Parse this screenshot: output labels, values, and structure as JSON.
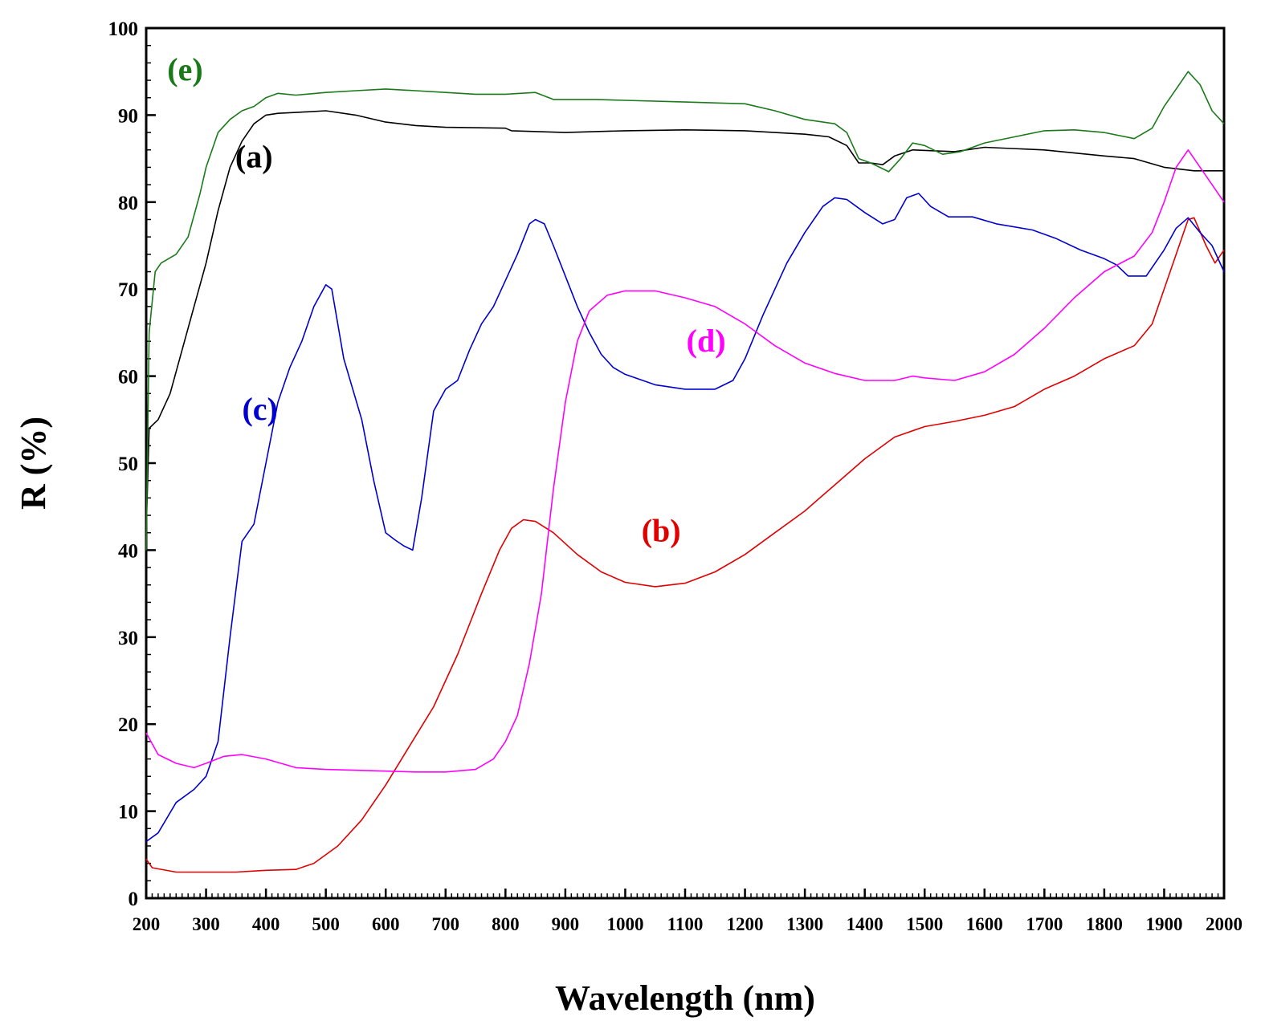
{
  "chart_data": {
    "type": "line",
    "xlabel": "Wavelength (nm)",
    "ylabel": "R (%)",
    "xlim": [
      200,
      2000
    ],
    "ylim": [
      0,
      100
    ],
    "x_ticks": [
      200,
      300,
      400,
      500,
      600,
      700,
      800,
      900,
      1000,
      1100,
      1200,
      1300,
      1400,
      1500,
      1600,
      1700,
      1800,
      1900,
      2000
    ],
    "y_ticks": [
      0,
      10,
      20,
      30,
      40,
      50,
      60,
      70,
      80,
      90,
      100
    ],
    "grid": false,
    "series": [
      {
        "name": "(a)",
        "color": "#000000",
        "label_at": [
          380,
          84
        ],
        "points": [
          [
            200,
            42
          ],
          [
            205,
            54
          ],
          [
            220,
            55
          ],
          [
            240,
            58
          ],
          [
            260,
            63
          ],
          [
            280,
            68
          ],
          [
            300,
            73
          ],
          [
            320,
            79
          ],
          [
            340,
            84
          ],
          [
            360,
            87
          ],
          [
            380,
            89
          ],
          [
            400,
            90
          ],
          [
            420,
            90.2
          ],
          [
            450,
            90.3
          ],
          [
            500,
            90.5
          ],
          [
            550,
            90
          ],
          [
            600,
            89.2
          ],
          [
            650,
            88.8
          ],
          [
            700,
            88.6
          ],
          [
            800,
            88.5
          ],
          [
            810,
            88.2
          ],
          [
            900,
            88
          ],
          [
            1000,
            88.2
          ],
          [
            1100,
            88.3
          ],
          [
            1200,
            88.2
          ],
          [
            1300,
            87.8
          ],
          [
            1340,
            87.5
          ],
          [
            1370,
            86.5
          ],
          [
            1390,
            84.5
          ],
          [
            1410,
            84.5
          ],
          [
            1430,
            84.3
          ],
          [
            1450,
            85.3
          ],
          [
            1480,
            86
          ],
          [
            1550,
            85.8
          ],
          [
            1600,
            86.3
          ],
          [
            1700,
            86
          ],
          [
            1800,
            85.3
          ],
          [
            1850,
            85
          ],
          [
            1900,
            84
          ],
          [
            1950,
            83.6
          ],
          [
            2000,
            83.6
          ]
        ]
      },
      {
        "name": "(b)",
        "color": "#e00000",
        "label_at": [
          1060,
          41
        ],
        "points": [
          [
            200,
            4.5
          ],
          [
            210,
            3.5
          ],
          [
            250,
            3
          ],
          [
            300,
            3
          ],
          [
            350,
            3
          ],
          [
            400,
            3.2
          ],
          [
            450,
            3.3
          ],
          [
            480,
            4
          ],
          [
            520,
            6
          ],
          [
            560,
            9
          ],
          [
            600,
            13
          ],
          [
            640,
            17.5
          ],
          [
            680,
            22
          ],
          [
            720,
            28
          ],
          [
            760,
            35
          ],
          [
            790,
            40
          ],
          [
            810,
            42.5
          ],
          [
            830,
            43.5
          ],
          [
            850,
            43.3
          ],
          [
            880,
            42
          ],
          [
            920,
            39.5
          ],
          [
            960,
            37.5
          ],
          [
            1000,
            36.3
          ],
          [
            1050,
            35.8
          ],
          [
            1100,
            36.2
          ],
          [
            1150,
            37.5
          ],
          [
            1200,
            39.5
          ],
          [
            1250,
            42
          ],
          [
            1300,
            44.5
          ],
          [
            1350,
            47.5
          ],
          [
            1400,
            50.5
          ],
          [
            1450,
            53
          ],
          [
            1500,
            54.2
          ],
          [
            1550,
            54.8
          ],
          [
            1600,
            55.5
          ],
          [
            1650,
            56.5
          ],
          [
            1700,
            58.5
          ],
          [
            1750,
            60
          ],
          [
            1800,
            62
          ],
          [
            1850,
            63.5
          ],
          [
            1880,
            66
          ],
          [
            1900,
            70
          ],
          [
            1920,
            74
          ],
          [
            1940,
            78
          ],
          [
            1950,
            78.2
          ],
          [
            1970,
            75
          ],
          [
            1985,
            73
          ],
          [
            2000,
            74.5
          ]
        ]
      },
      {
        "name": "(c)",
        "color": "#0000d0",
        "label_at": [
          390,
          55
        ],
        "points": [
          [
            200,
            6.5
          ],
          [
            220,
            7.5
          ],
          [
            250,
            11
          ],
          [
            280,
            12.5
          ],
          [
            300,
            14
          ],
          [
            320,
            18
          ],
          [
            340,
            30
          ],
          [
            360,
            41
          ],
          [
            380,
            43
          ],
          [
            400,
            50
          ],
          [
            420,
            57
          ],
          [
            440,
            61
          ],
          [
            460,
            64
          ],
          [
            480,
            68
          ],
          [
            500,
            70.5
          ],
          [
            510,
            70
          ],
          [
            530,
            62
          ],
          [
            560,
            55
          ],
          [
            580,
            48
          ],
          [
            600,
            42
          ],
          [
            615,
            41.2
          ],
          [
            630,
            40.5
          ],
          [
            645,
            40
          ],
          [
            660,
            46
          ],
          [
            680,
            56
          ],
          [
            700,
            58.5
          ],
          [
            720,
            59.5
          ],
          [
            740,
            63
          ],
          [
            760,
            66
          ],
          [
            780,
            68
          ],
          [
            800,
            71
          ],
          [
            820,
            74
          ],
          [
            840,
            77.5
          ],
          [
            850,
            78
          ],
          [
            865,
            77.5
          ],
          [
            880,
            75
          ],
          [
            900,
            71.5
          ],
          [
            920,
            68
          ],
          [
            940,
            65
          ],
          [
            960,
            62.5
          ],
          [
            980,
            61
          ],
          [
            1000,
            60.2
          ],
          [
            1050,
            59
          ],
          [
            1100,
            58.5
          ],
          [
            1150,
            58.5
          ],
          [
            1180,
            59.5
          ],
          [
            1200,
            62
          ],
          [
            1230,
            67
          ],
          [
            1270,
            73
          ],
          [
            1300,
            76.5
          ],
          [
            1330,
            79.5
          ],
          [
            1350,
            80.5
          ],
          [
            1370,
            80.3
          ],
          [
            1400,
            78.8
          ],
          [
            1430,
            77.5
          ],
          [
            1450,
            78
          ],
          [
            1470,
            80.5
          ],
          [
            1490,
            81
          ],
          [
            1510,
            79.5
          ],
          [
            1540,
            78.3
          ],
          [
            1580,
            78.3
          ],
          [
            1620,
            77.5
          ],
          [
            1680,
            76.8
          ],
          [
            1720,
            75.8
          ],
          [
            1760,
            74.5
          ],
          [
            1800,
            73.5
          ],
          [
            1820,
            72.8
          ],
          [
            1840,
            71.5
          ],
          [
            1870,
            71.5
          ],
          [
            1900,
            74.5
          ],
          [
            1920,
            77
          ],
          [
            1940,
            78.2
          ],
          [
            1960,
            76.5
          ],
          [
            1980,
            75
          ],
          [
            2000,
            72
          ]
        ]
      },
      {
        "name": "(d)",
        "color": "#ff00ff",
        "label_at": [
          1135,
          62.8
        ],
        "points": [
          [
            200,
            19
          ],
          [
            220,
            16.5
          ],
          [
            250,
            15.5
          ],
          [
            280,
            15
          ],
          [
            300,
            15.5
          ],
          [
            330,
            16.3
          ],
          [
            360,
            16.5
          ],
          [
            400,
            16
          ],
          [
            450,
            15
          ],
          [
            500,
            14.8
          ],
          [
            600,
            14.6
          ],
          [
            650,
            14.5
          ],
          [
            700,
            14.5
          ],
          [
            750,
            14.8
          ],
          [
            780,
            16
          ],
          [
            800,
            18
          ],
          [
            820,
            21
          ],
          [
            840,
            27
          ],
          [
            860,
            35
          ],
          [
            880,
            47
          ],
          [
            900,
            57
          ],
          [
            920,
            64
          ],
          [
            940,
            67.5
          ],
          [
            970,
            69.3
          ],
          [
            1000,
            69.8
          ],
          [
            1050,
            69.8
          ],
          [
            1100,
            69
          ],
          [
            1150,
            68
          ],
          [
            1200,
            66
          ],
          [
            1250,
            63.5
          ],
          [
            1300,
            61.5
          ],
          [
            1350,
            60.3
          ],
          [
            1400,
            59.5
          ],
          [
            1450,
            59.5
          ],
          [
            1480,
            60
          ],
          [
            1500,
            59.8
          ],
          [
            1550,
            59.5
          ],
          [
            1600,
            60.5
          ],
          [
            1650,
            62.5
          ],
          [
            1700,
            65.5
          ],
          [
            1750,
            69
          ],
          [
            1800,
            72
          ],
          [
            1850,
            73.8
          ],
          [
            1880,
            76.5
          ],
          [
            1900,
            80
          ],
          [
            1920,
            84
          ],
          [
            1940,
            86
          ],
          [
            1960,
            84
          ],
          [
            1980,
            82
          ],
          [
            2000,
            80
          ]
        ]
      },
      {
        "name": "(e)",
        "color": "#1a7a1a",
        "label_at": [
          265,
          94
        ],
        "points": [
          [
            200,
            40
          ],
          [
            205,
            65
          ],
          [
            215,
            72
          ],
          [
            225,
            73
          ],
          [
            250,
            74
          ],
          [
            270,
            76
          ],
          [
            290,
            81
          ],
          [
            300,
            84
          ],
          [
            320,
            88
          ],
          [
            340,
            89.5
          ],
          [
            360,
            90.5
          ],
          [
            380,
            91
          ],
          [
            400,
            92
          ],
          [
            420,
            92.5
          ],
          [
            450,
            92.3
          ],
          [
            500,
            92.6
          ],
          [
            550,
            92.8
          ],
          [
            600,
            93
          ],
          [
            650,
            92.8
          ],
          [
            700,
            92.6
          ],
          [
            750,
            92.4
          ],
          [
            800,
            92.4
          ],
          [
            850,
            92.6
          ],
          [
            880,
            91.8
          ],
          [
            950,
            91.8
          ],
          [
            1000,
            91.7
          ],
          [
            1100,
            91.5
          ],
          [
            1200,
            91.3
          ],
          [
            1250,
            90.5
          ],
          [
            1300,
            89.5
          ],
          [
            1350,
            89
          ],
          [
            1370,
            88
          ],
          [
            1390,
            85
          ],
          [
            1410,
            84.5
          ],
          [
            1440,
            83.5
          ],
          [
            1460,
            85
          ],
          [
            1480,
            86.8
          ],
          [
            1500,
            86.5
          ],
          [
            1530,
            85.5
          ],
          [
            1560,
            85.8
          ],
          [
            1600,
            86.8
          ],
          [
            1650,
            87.5
          ],
          [
            1700,
            88.2
          ],
          [
            1750,
            88.3
          ],
          [
            1800,
            88
          ],
          [
            1850,
            87.3
          ],
          [
            1880,
            88.5
          ],
          [
            1900,
            91
          ],
          [
            1920,
            93
          ],
          [
            1940,
            95
          ],
          [
            1960,
            93.5
          ],
          [
            1980,
            90.5
          ],
          [
            2000,
            89
          ]
        ]
      }
    ]
  }
}
